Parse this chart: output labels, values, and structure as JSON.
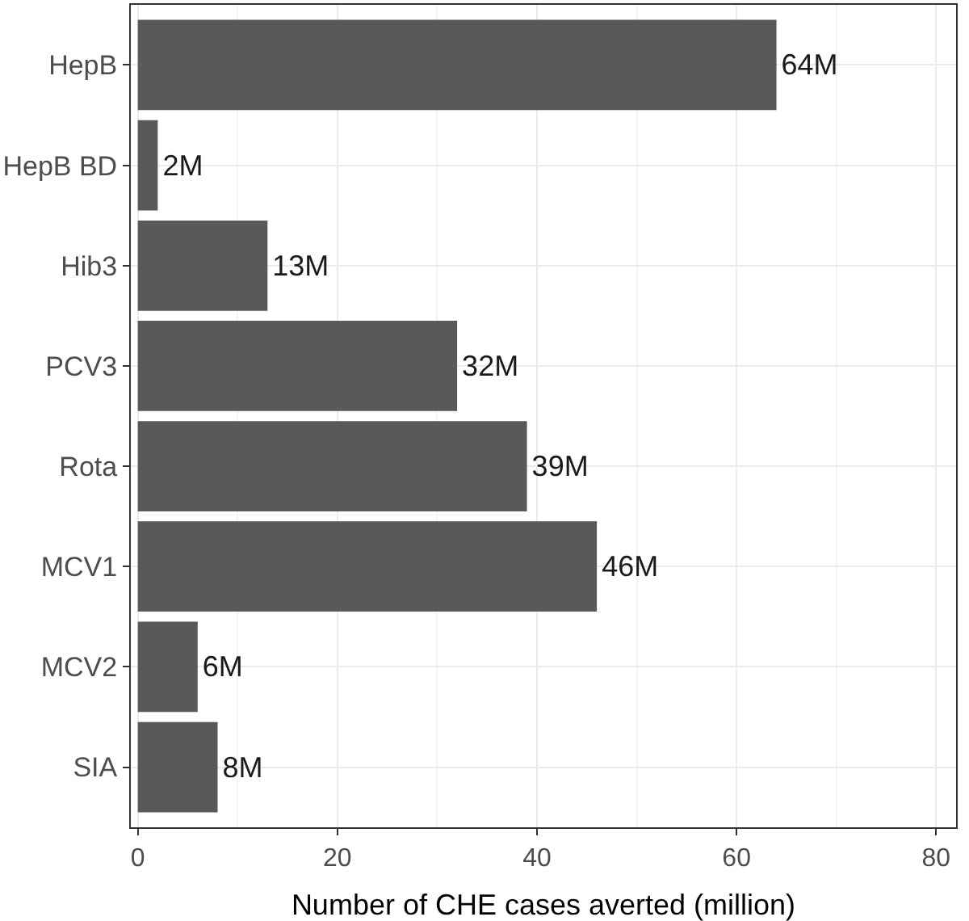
{
  "chart_data": {
    "type": "bar",
    "orientation": "horizontal",
    "xlabel": "Number of CHE cases averted (million)",
    "categories": [
      "HepB",
      "HepB BD",
      "Hib3",
      "PCV3",
      "Rota",
      "MCV1",
      "MCV2",
      "SIA"
    ],
    "values": [
      64,
      2,
      13,
      32,
      39,
      46,
      6,
      8
    ],
    "value_labels": [
      "64M",
      "2M",
      "13M",
      "32M",
      "39M",
      "46M",
      "6M",
      "8M"
    ],
    "color": "#595959",
    "xlim": [
      -0.7,
      82
    ],
    "xticks": [
      0,
      20,
      40,
      60,
      80
    ],
    "grid": true
  }
}
